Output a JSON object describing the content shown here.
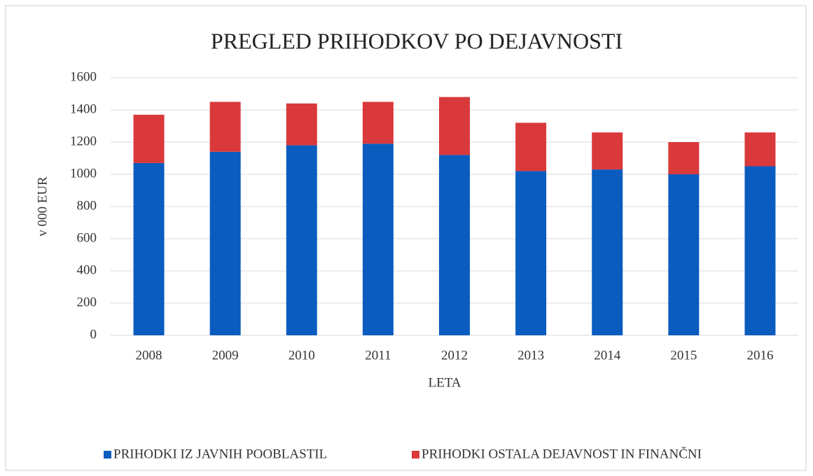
{
  "chart_data": {
    "type": "stacked_bar",
    "title": "PREGLED PRIHODKOV PO DEJAVNOSTI",
    "x_label": "LETA",
    "y_label": "v 000 EUR",
    "categories": [
      "2008",
      "2009",
      "2010",
      "2011",
      "2012",
      "2013",
      "2014",
      "2015",
      "2016"
    ],
    "series": [
      {
        "name": "PRIHODKI IZ JAVNIH POOBLASTIL",
        "color": "#0b5cbf",
        "values": [
          1070,
          1140,
          1180,
          1190,
          1120,
          1020,
          1030,
          1000,
          1050
        ]
      },
      {
        "name": "PRIHODKI OSTALA DEJAVNOST IN FINANČNI",
        "color": "#d9393b",
        "values": [
          300,
          310,
          260,
          260,
          360,
          300,
          230,
          200,
          210
        ]
      }
    ],
    "ylim": [
      0,
      1600
    ],
    "yticks": [
      0,
      200,
      400,
      600,
      800,
      1000,
      1200,
      1400,
      1600
    ],
    "grid": true,
    "legend": "bottom"
  }
}
